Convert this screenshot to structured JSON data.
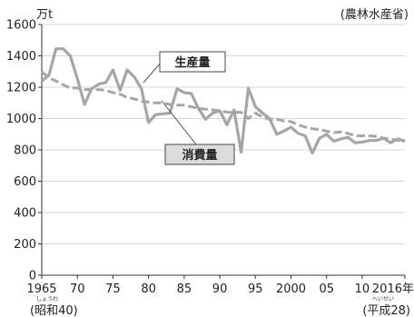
{
  "chart_data": {
    "type": "line",
    "y_unit": "万t",
    "source": "(農林水産省)",
    "x_start_era": "(昭和40)",
    "x_start_era_ruby": "しょうわ",
    "x_end_era": "(平成28)",
    "x_end_era_ruby": "へいせい",
    "ylim": [
      0,
      1600
    ],
    "y_ticks": [
      0,
      200,
      400,
      600,
      800,
      1000,
      1200,
      1400,
      1600
    ],
    "xlim": [
      1965,
      2016
    ],
    "x_tick_values": [
      1965,
      1970,
      1975,
      1980,
      1985,
      1990,
      1995,
      2000,
      2005,
      2010,
      2016
    ],
    "x_tick_labels": [
      "1965",
      "70",
      "75",
      "80",
      "85",
      "90",
      "95",
      "2000",
      "05",
      "10",
      "2016年"
    ],
    "grid": "horizontal",
    "x": [
      1965,
      1966,
      1967,
      1968,
      1969,
      1970,
      1971,
      1972,
      1973,
      1974,
      1975,
      1976,
      1977,
      1978,
      1979,
      1980,
      1981,
      1982,
      1983,
      1984,
      1985,
      1986,
      1987,
      1988,
      1989,
      1990,
      1991,
      1992,
      1993,
      1994,
      1995,
      1996,
      1997,
      1998,
      1999,
      2000,
      2001,
      2002,
      2003,
      2004,
      2005,
      2006,
      2007,
      2008,
      2009,
      2010,
      2011,
      2012,
      2013,
      2014,
      2015,
      2016
    ],
    "series": [
      {
        "name": "生産量",
        "color": "#a6a6a6",
        "values": [
          1240,
          1275,
          1445,
          1445,
          1400,
          1255,
          1090,
          1190,
          1220,
          1230,
          1310,
          1180,
          1310,
          1265,
          1190,
          975,
          1025,
          1030,
          1035,
          1190,
          1165,
          1160,
          1065,
          995,
          1035,
          1050,
          960,
          1055,
          785,
          1195,
          1075,
          1035,
          1000,
          900,
          920,
          945,
          905,
          890,
          780,
          875,
          900,
          855,
          870,
          880,
          845,
          850,
          860,
          860,
          875,
          845,
          870,
          855
        ]
      },
      {
        "name": "消費量",
        "color": "#a6a6a6",
        "style": "dashed",
        "values": [
          1300,
          1260,
          1240,
          1215,
          1195,
          1195,
          1185,
          1185,
          1185,
          1180,
          1165,
          1155,
          1135,
          1125,
          1110,
          1105,
          1100,
          1100,
          1090,
          1085,
          1085,
          1075,
          1065,
          1060,
          1055,
          1050,
          1040,
          1040,
          1040,
          1000,
          1035,
          1010,
          995,
          995,
          985,
          980,
          960,
          945,
          935,
          930,
          920,
          910,
          915,
          905,
          890,
          890,
          890,
          885,
          875,
          870,
          860,
          860
        ]
      }
    ]
  }
}
